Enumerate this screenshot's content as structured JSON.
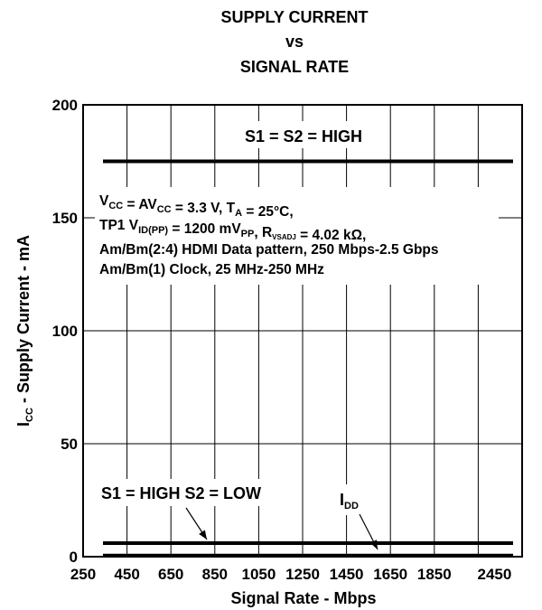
{
  "chart_data": {
    "type": "line",
    "title": [
      "SUPPLY CURRENT",
      "vs",
      "SIGNAL RATE"
    ],
    "xlabel": "Signal Rate - Mbps",
    "ylabel": {
      "base": "I",
      "sub": "CC",
      "rest": " - Supply Current - mA"
    },
    "x_ticks": [
      "250",
      "450",
      "650",
      "850",
      "1050",
      "1250",
      "1450",
      "1650",
      "1850",
      "2450"
    ],
    "xlim": [
      250,
      2450
    ],
    "ylim": [
      0,
      200
    ],
    "y_ticks": [
      0,
      50,
      100,
      150,
      200
    ],
    "grid": true,
    "series": [
      {
        "name": "S1 = S2 = HIGH",
        "x": [
          250,
          2450
        ],
        "y": [
          175,
          175
        ]
      },
      {
        "name": "S1 = HIGH S2 = LOW",
        "x": [
          250,
          2450
        ],
        "y": [
          6,
          6
        ]
      },
      {
        "name": "IDD",
        "x": [
          250,
          2450
        ],
        "y": [
          0.5,
          0.5
        ]
      }
    ],
    "labels": {
      "high": "S1 = S2 = HIGH",
      "low": "S1 = HIGH S2 = LOW",
      "idd_base": "I",
      "idd_sub": "DD"
    },
    "conditions": {
      "line1": [
        {
          "t": "V"
        },
        {
          "t": "CC",
          "sub": true
        },
        {
          "t": " = AV"
        },
        {
          "t": "CC",
          "sub": true
        },
        {
          "t": " = 3.3 V, T"
        },
        {
          "t": "A",
          "sub": true
        },
        {
          "t": " = 25°C,"
        }
      ],
      "line2": [
        {
          "t": "TP1 V"
        },
        {
          "t": "ID(PP)",
          "sub": true
        },
        {
          "t": " = 1200 mV"
        },
        {
          "t": "PP",
          "sub": true
        },
        {
          "t": ", R"
        },
        {
          "t": "VSADJ",
          "tiny": true
        },
        {
          "t": " = 4.02 kΩ,"
        }
      ],
      "line3": "Am/Bm(2:4) HDMI Data pattern, 250 Mbps-2.5 Gbps",
      "line4": "Am/Bm(1) Clock, 25 MHz-250 MHz"
    }
  }
}
